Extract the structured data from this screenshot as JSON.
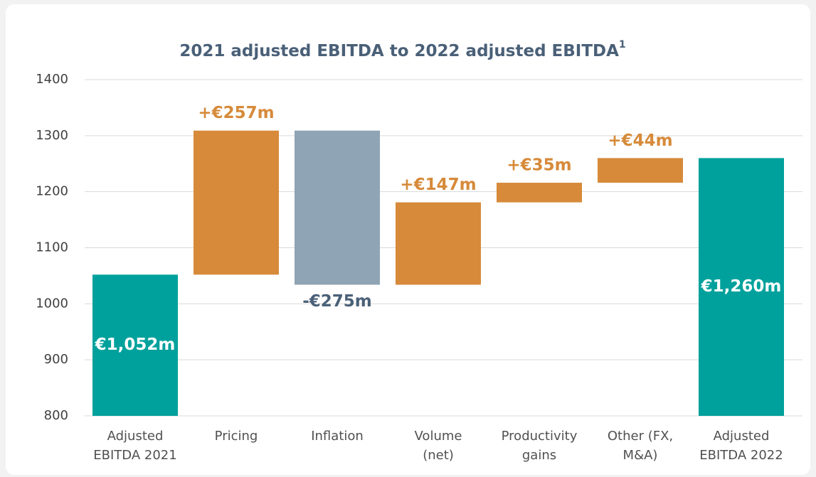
{
  "chart_data": {
    "type": "waterfall",
    "title": "2021 adjusted EBITDA to 2022 adjusted EBITDA",
    "title_superscript": "1",
    "categories": [
      [
        "Adjusted",
        "EBITDA 2021"
      ],
      [
        "Pricing"
      ],
      [
        "Inflation"
      ],
      [
        "Volume",
        "(net)"
      ],
      [
        "Productivity",
        "gains"
      ],
      [
        "Other (FX,",
        "M&A)"
      ],
      [
        "Adjusted",
        "EBITDA 2022"
      ]
    ],
    "measures": [
      "absolute",
      "relative",
      "relative",
      "relative",
      "relative",
      "relative",
      "total"
    ],
    "values": [
      1052,
      257,
      -275,
      147,
      35,
      44,
      1260
    ],
    "value_labels": [
      "€1,052m",
      "+€257m",
      "-€275m",
      "+€147m",
      "+€35m",
      "+€44m",
      "€1,260m"
    ],
    "colors": {
      "total": "#00a19c",
      "increase": "#d68a3a",
      "decrease": "#8fa4b4"
    },
    "ylim": [
      800,
      1400
    ],
    "yticks": [
      800,
      900,
      1000,
      1100,
      1200,
      1300,
      1400
    ],
    "grid": true
  }
}
